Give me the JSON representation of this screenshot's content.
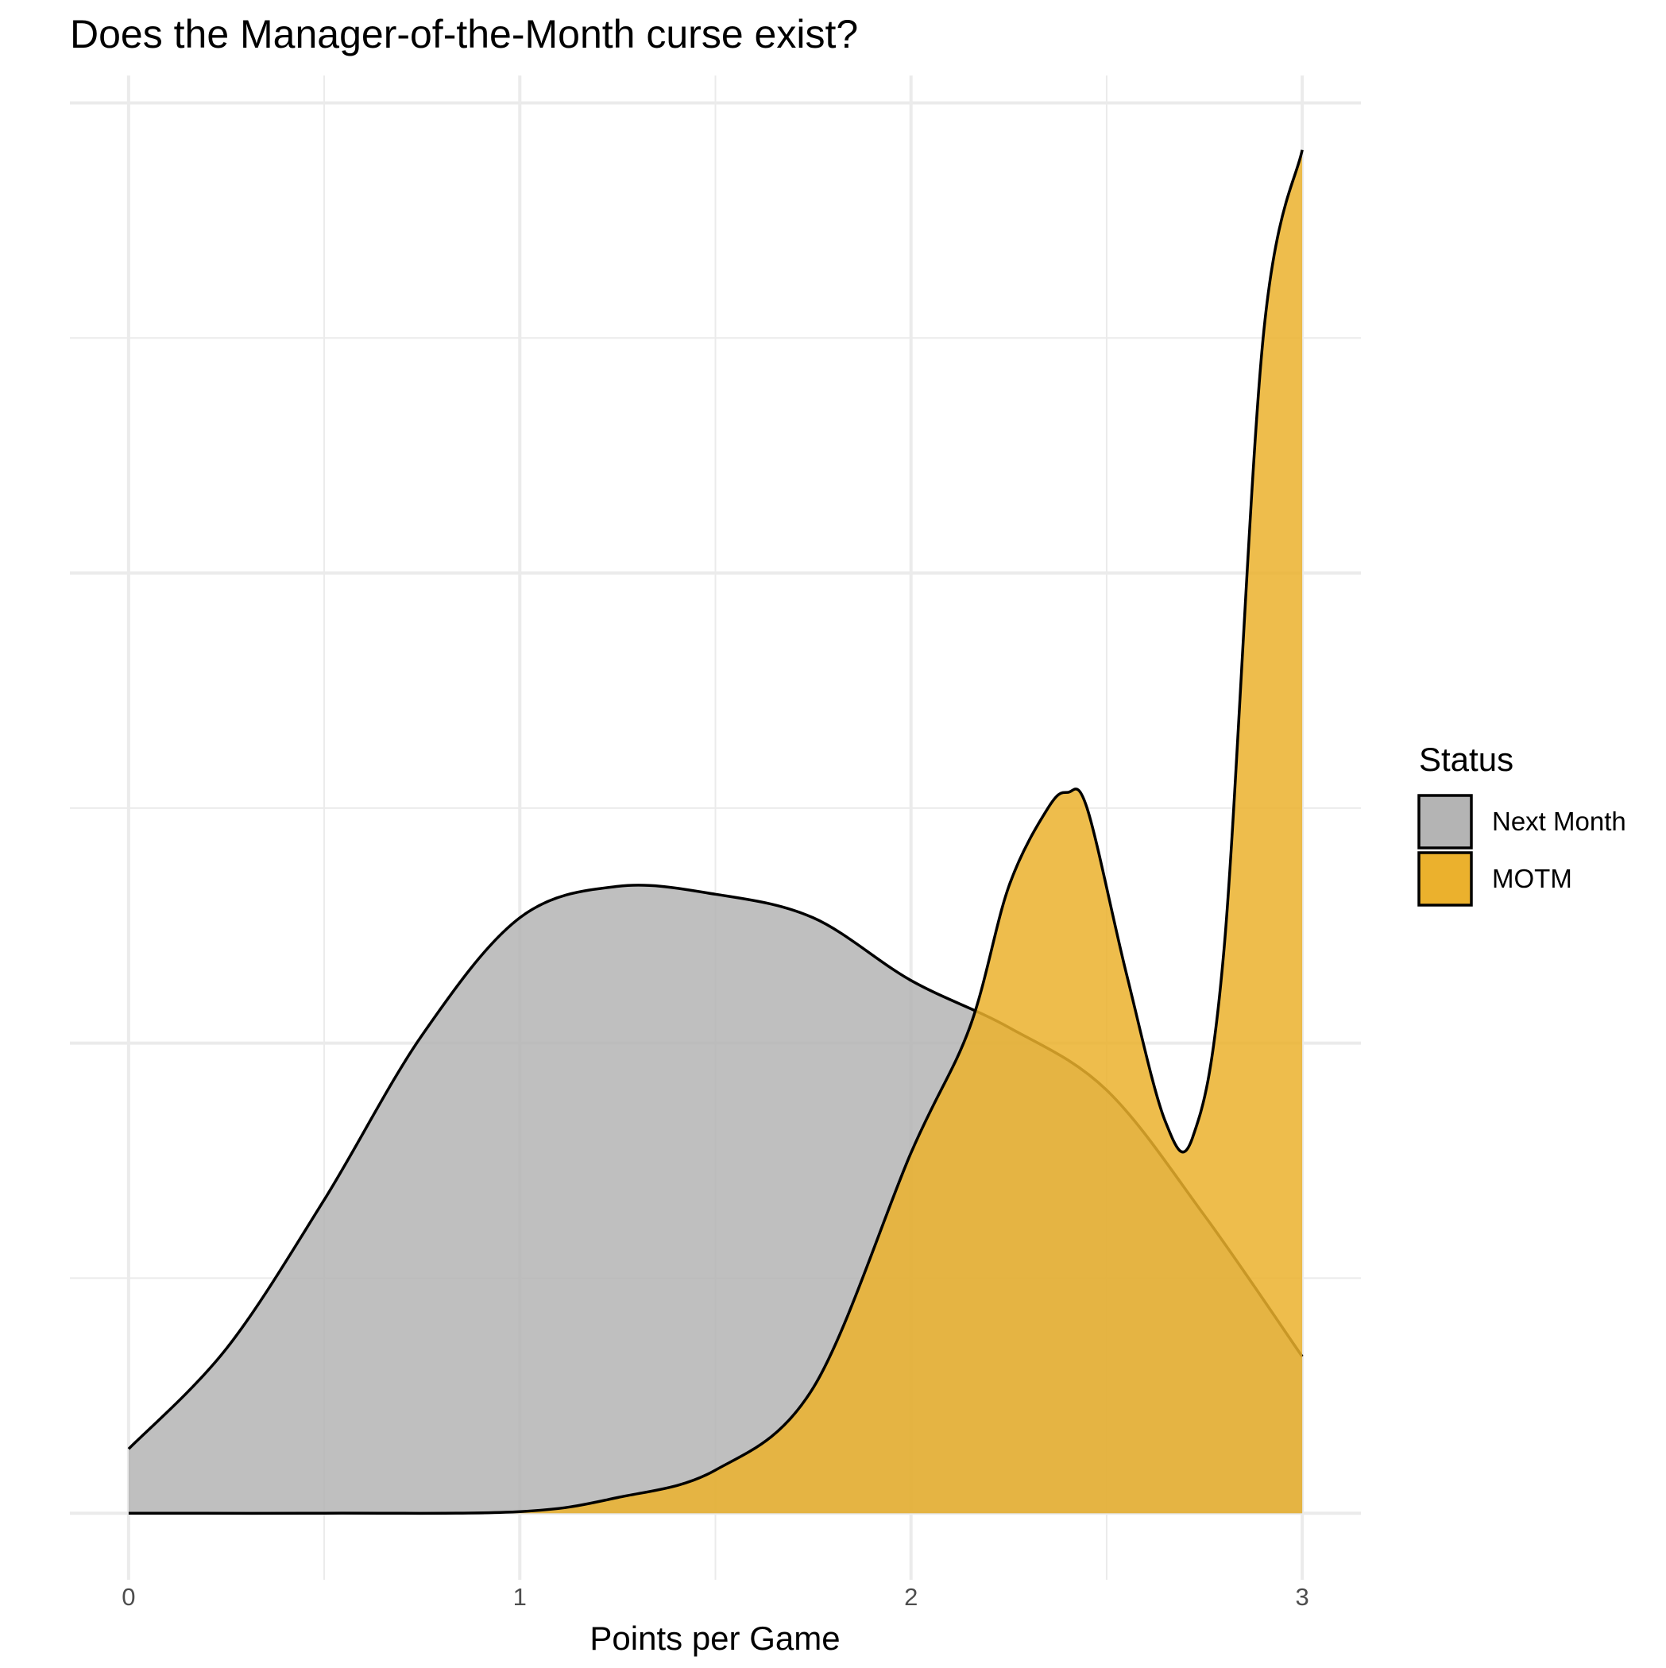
{
  "chart_data": {
    "type": "area",
    "title": "Does the Manager-of-the-Month curse exist?",
    "xlabel": "Points per Game",
    "ylabel": "",
    "xlim": [
      -0.15,
      3.15
    ],
    "ylim": [
      -0.085,
      1.835
    ],
    "x_ticks": [
      "0",
      "1",
      "2",
      "3"
    ],
    "grid": true,
    "legend": {
      "title": "Status",
      "placement": "right"
    },
    "series": [
      {
        "name": "Next Month",
        "color": "#b4b4b4",
        "x": [
          0,
          0.25,
          0.5,
          0.75,
          1.0,
          1.25,
          1.5,
          1.75,
          2.0,
          2.25,
          2.5,
          2.75,
          3.0
        ],
        "values": [
          0.082,
          0.21,
          0.4,
          0.61,
          0.76,
          0.8,
          0.79,
          0.76,
          0.68,
          0.62,
          0.54,
          0.38,
          0.2
        ]
      },
      {
        "name": "MOTM",
        "color": "#ebb12d",
        "x": [
          0,
          0.5,
          1.0,
          1.25,
          1.5,
          1.75,
          2.0,
          2.15,
          2.25,
          2.35,
          2.4,
          2.45,
          2.55,
          2.65,
          2.72,
          2.8,
          2.9,
          3.0
        ],
        "values": [
          0,
          0,
          0.002,
          0.02,
          0.055,
          0.16,
          0.46,
          0.62,
          0.8,
          0.9,
          0.92,
          0.9,
          0.69,
          0.5,
          0.48,
          0.72,
          1.5,
          1.74
        ]
      }
    ]
  }
}
